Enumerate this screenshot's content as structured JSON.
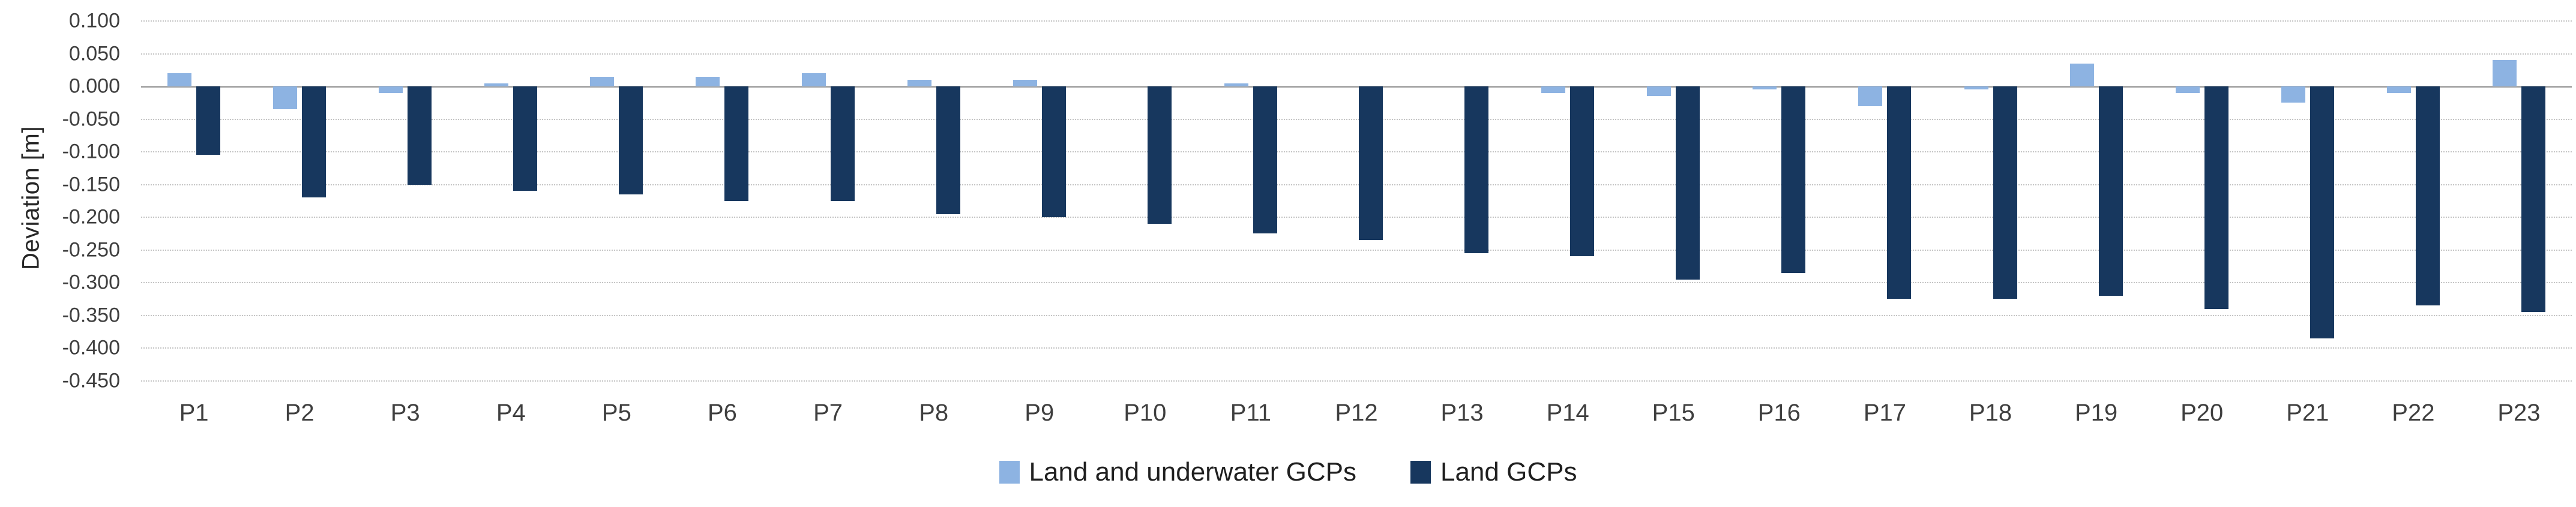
{
  "chart_data": {
    "type": "bar",
    "title": "",
    "ylabel": "Deviation [m]",
    "xlabel": "",
    "categories": [
      "P1",
      "P2",
      "P3",
      "P4",
      "P5",
      "P6",
      "P7",
      "P8",
      "P9",
      "P10",
      "P11",
      "P12",
      "P13",
      "P14",
      "P15",
      "P16",
      "P17",
      "P18",
      "P19",
      "P20",
      "P21",
      "P22",
      "P23"
    ],
    "series": [
      {
        "name": "Land and underwater GCPs",
        "color": "#8DB3E2",
        "values": [
          0.02,
          -0.035,
          -0.01,
          0.005,
          0.015,
          0.015,
          0.02,
          0.01,
          0.01,
          0.0,
          0.005,
          0.0,
          0.0,
          -0.01,
          -0.015,
          -0.005,
          -0.03,
          -0.005,
          0.035,
          -0.01,
          -0.025,
          -0.01,
          0.04
        ]
      },
      {
        "name": "Land GCPs",
        "color": "#17375E",
        "values": [
          -0.105,
          -0.17,
          -0.15,
          -0.16,
          -0.165,
          -0.175,
          -0.175,
          -0.195,
          -0.2,
          -0.21,
          -0.225,
          -0.235,
          -0.255,
          -0.26,
          -0.295,
          -0.285,
          -0.325,
          -0.325,
          -0.32,
          -0.34,
          -0.385,
          -0.335,
          -0.345
        ]
      }
    ],
    "ylim": [
      -0.45,
      0.1
    ],
    "ytick_step": 0.05,
    "ytick_labels": [
      "0.100",
      "0.050",
      "0.000",
      "-0.050",
      "-0.100",
      "-0.150",
      "-0.200",
      "-0.250",
      "-0.300",
      "-0.350",
      "-0.400",
      "-0.450"
    ],
    "grid": "horizontal dotted",
    "zero_line_color": "#A6A6A6",
    "gridline_color": "#C4C4C4",
    "legend_position": "bottom-center"
  }
}
